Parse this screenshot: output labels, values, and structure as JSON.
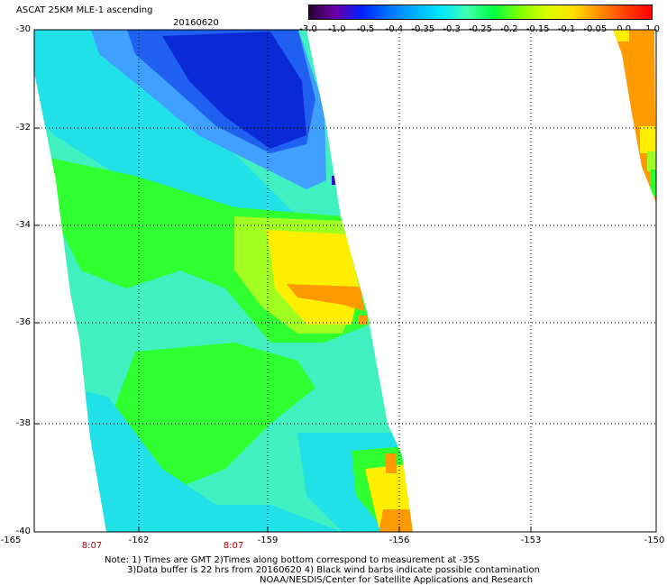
{
  "header": {
    "title": "ASCAT 25KM MLE-1 ascending",
    "date": "20160620"
  },
  "colorbar": {
    "ticks": [
      "-3.0",
      "-1.0",
      "-0.5",
      "-0.4",
      "-0.35",
      "-0.3",
      "-0.25",
      "-0.2",
      "-0.15",
      "-0.1",
      "-0.05",
      "0.0",
      "1.0"
    ],
    "colors": [
      "#2a0030",
      "#6a00a8",
      "#0020ff",
      "#0070ff",
      "#00b0ff",
      "#00e8ff",
      "#40ffb0",
      "#00ff40",
      "#80ff00",
      "#d8ff00",
      "#ffe000",
      "#ff9000",
      "#ff4000",
      "#ff0000"
    ]
  },
  "map": {
    "lat_labels": [
      "-30",
      "-32",
      "-34",
      "-36",
      "-38",
      "-40"
    ],
    "lon_labels": [
      "-165",
      "-162",
      "-159",
      "-156",
      "-153",
      "-150"
    ],
    "time_labels": [
      "8:07",
      "8:07"
    ],
    "colors": {
      "deep_blue": "#0a2ad8",
      "blue": "#2060f0",
      "light_blue": "#40a0ff",
      "cyan": "#20e0e8",
      "aqua": "#40f0c0",
      "green": "#30ff30",
      "lime": "#a0ff20",
      "yellow": "#ffee00",
      "orange": "#ff9a00",
      "purple": "#3010c0"
    }
  },
  "notes": {
    "line1": "Note: 1) Times are GMT 2)Times along bottom correspond to measurement at -35S",
    "line2": "3)Data buffer is 22 hrs from 20160620 4) Black wind barbs indicate possible contamination",
    "line3": "NOAA/NESDIS/Center for Satellite Applications and Research"
  }
}
